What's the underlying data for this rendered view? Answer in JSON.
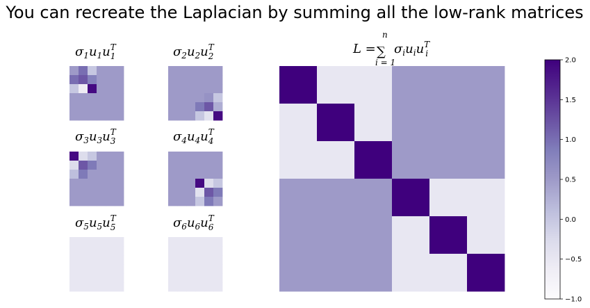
{
  "title": "You can recreate the Laplacian by summing all the low-rank matrices",
  "colormap": {
    "name": "Purples",
    "vmin": -1.0,
    "vmax": 2.0,
    "stops": [
      "#fcfbfd",
      "#efedf5",
      "#dadaeb",
      "#bcbddc",
      "#9e9ac8",
      "#807dba",
      "#6a51a3",
      "#54278f",
      "#3f007d"
    ]
  },
  "chart_data": [
    {
      "type": "heatmap",
      "panel": "sigma1",
      "title": {
        "base": "σ1u1u",
        "sup": "T",
        "sub": "1"
      },
      "values": [
        [
          0.5,
          1.0,
          0.0,
          0.5,
          0.5,
          0.5
        ],
        [
          1.0,
          1.2,
          0.8,
          0.5,
          0.5,
          0.5
        ],
        [
          0.0,
          -0.6,
          1.9,
          0.5,
          0.5,
          0.5
        ],
        [
          0.5,
          0.5,
          0.5,
          0.5,
          0.5,
          0.5
        ],
        [
          0.5,
          0.5,
          0.5,
          0.5,
          0.5,
          0.5
        ],
        [
          0.5,
          0.5,
          0.5,
          0.5,
          0.5,
          0.5
        ]
      ]
    },
    {
      "type": "heatmap",
      "panel": "sigma2",
      "title": {
        "base": "σ2u2u",
        "sup": "T",
        "sub": "2"
      },
      "values": [
        [
          0.5,
          0.5,
          0.5,
          0.5,
          0.5,
          0.5
        ],
        [
          0.5,
          0.5,
          0.5,
          0.5,
          0.5,
          0.5
        ],
        [
          0.5,
          0.5,
          0.5,
          0.5,
          0.5,
          0.5
        ],
        [
          0.5,
          0.5,
          0.5,
          0.5,
          0.6,
          0.0
        ],
        [
          0.5,
          0.5,
          0.5,
          0.9,
          1.2,
          0.3
        ],
        [
          0.5,
          0.5,
          0.5,
          0.0,
          -0.4,
          1.9
        ]
      ]
    },
    {
      "type": "heatmap",
      "panel": "sigma3",
      "title": {
        "base": "σ3u3u",
        "sup": "T",
        "sub": "3"
      },
      "values": [
        [
          1.9,
          -0.3,
          0.0,
          0.5,
          0.5,
          0.5
        ],
        [
          -0.3,
          1.2,
          0.9,
          0.5,
          0.5,
          0.5
        ],
        [
          0.1,
          0.9,
          0.5,
          0.5,
          0.5,
          0.5
        ],
        [
          0.5,
          0.5,
          0.5,
          0.5,
          0.5,
          0.5
        ],
        [
          0.5,
          0.5,
          0.5,
          0.5,
          0.5,
          0.5
        ],
        [
          0.5,
          0.5,
          0.5,
          0.5,
          0.5,
          0.5
        ]
      ]
    },
    {
      "type": "heatmap",
      "panel": "sigma4",
      "title": {
        "base": "σ4u4u",
        "sup": "T",
        "sub": "4"
      },
      "values": [
        [
          0.5,
          0.5,
          0.5,
          0.5,
          0.5,
          0.5
        ],
        [
          0.5,
          0.5,
          0.5,
          0.5,
          0.5,
          0.5
        ],
        [
          0.5,
          0.5,
          0.5,
          0.5,
          0.5,
          0.5
        ],
        [
          0.5,
          0.5,
          0.5,
          1.9,
          -0.3,
          0.0
        ],
        [
          0.5,
          0.5,
          0.5,
          -0.4,
          1.2,
          0.9
        ],
        [
          0.5,
          0.5,
          0.5,
          0.0,
          0.9,
          0.5
        ]
      ]
    },
    {
      "type": "heatmap",
      "panel": "sigma5",
      "title": {
        "base": "σ5u5u",
        "sup": "T",
        "sub": "5"
      },
      "values": [
        [
          -0.5,
          -0.5,
          -0.5,
          -0.5,
          -0.5,
          -0.5
        ],
        [
          -0.5,
          -0.5,
          -0.5,
          -0.5,
          -0.5,
          -0.5
        ],
        [
          -0.5,
          -0.5,
          -0.5,
          -0.5,
          -0.5,
          -0.5
        ],
        [
          -0.5,
          -0.5,
          -0.5,
          -0.5,
          -0.5,
          -0.5
        ],
        [
          -0.5,
          -0.5,
          -0.5,
          -0.5,
          -0.5,
          -0.5
        ],
        [
          -0.5,
          -0.5,
          -0.5,
          -0.5,
          -0.5,
          -0.5
        ]
      ]
    },
    {
      "type": "heatmap",
      "panel": "sigma6",
      "title": {
        "base": "σ6u6u",
        "sup": "T",
        "sub": "6"
      },
      "values": [
        [
          -0.5,
          -0.5,
          -0.5,
          -0.5,
          -0.5,
          -0.5
        ],
        [
          -0.5,
          -0.5,
          -0.5,
          -0.5,
          -0.5,
          -0.5
        ],
        [
          -0.5,
          -0.5,
          -0.5,
          -0.5,
          -0.5,
          -0.5
        ],
        [
          -0.5,
          -0.5,
          -0.5,
          -0.5,
          -0.5,
          -0.5
        ],
        [
          -0.5,
          -0.5,
          -0.5,
          -0.5,
          -0.5,
          -0.5
        ],
        [
          -0.5,
          -0.5,
          -0.5,
          -0.5,
          -0.5,
          -0.5
        ]
      ]
    },
    {
      "type": "heatmap",
      "panel": "laplacian",
      "title": {
        "lhs": "L =",
        "sum_symbol": "∑",
        "sum_top": "n",
        "sum_bottom": "i = 1",
        "term_base": "σiuiu",
        "term_sup": "T",
        "term_sub": "i"
      },
      "values": [
        [
          2.0,
          -0.5,
          -0.5,
          0.5,
          0.5,
          0.5
        ],
        [
          -0.5,
          2.0,
          -0.5,
          0.5,
          0.5,
          0.5
        ],
        [
          -0.5,
          -0.5,
          2.0,
          0.5,
          0.5,
          0.5
        ],
        [
          0.5,
          0.5,
          0.5,
          2.0,
          -0.5,
          -0.5
        ],
        [
          0.5,
          0.5,
          0.5,
          -0.5,
          2.0,
          -0.5
        ],
        [
          0.5,
          0.5,
          0.5,
          -0.5,
          -0.5,
          2.0
        ]
      ]
    }
  ],
  "colorbar": {
    "ticks": [
      2.0,
      1.5,
      1.0,
      0.5,
      0.0,
      -0.5,
      -1.0
    ],
    "tick_labels": [
      "2.0",
      "1.5",
      "1.0",
      "0.5",
      "0.0",
      "−0.5",
      "−1.0"
    ]
  }
}
